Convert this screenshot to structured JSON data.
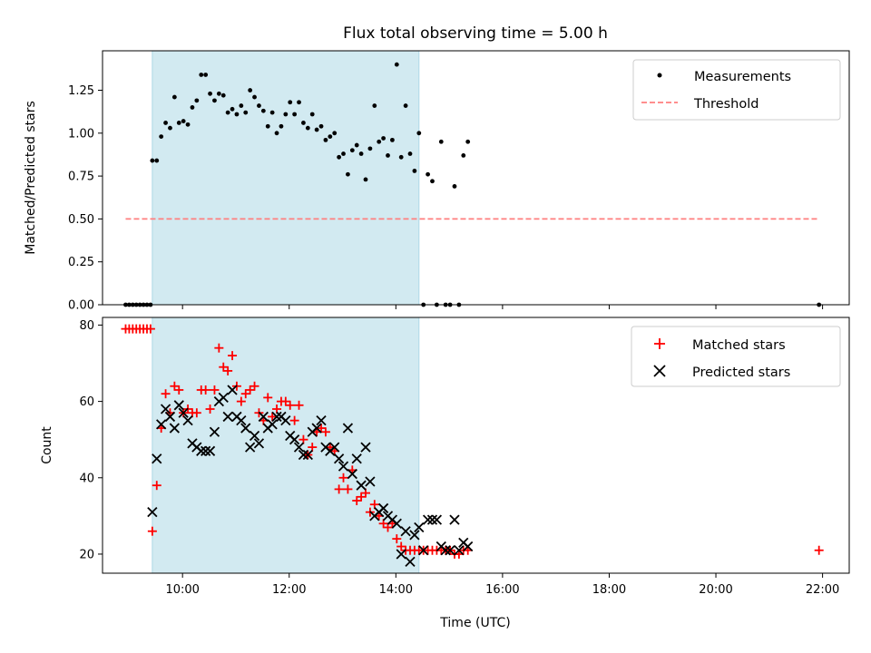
{
  "chart_data": [
    {
      "type": "scatter",
      "title": "Flux total observing time = 5.00 h",
      "xlabel": "",
      "ylabel": "Matched/Predicted stars",
      "xlim": [
        "08:30",
        "22:30"
      ],
      "ylim": [
        0,
        1.48
      ],
      "yticks": [
        "0.00",
        "0.25",
        "0.50",
        "0.75",
        "1.00",
        "1.25"
      ],
      "ytick_values": [
        0,
        0.25,
        0.5,
        0.75,
        1.0,
        1.25
      ],
      "shaded_interval": [
        "09:26",
        "14:26"
      ],
      "shade_color": "#add8e6",
      "legend_position": "upper right",
      "series": [
        {
          "name": "Measurements",
          "marker": "dot",
          "color": "#000000",
          "x": [
            "08:56",
            "09:00",
            "09:04",
            "09:08",
            "09:12",
            "09:16",
            "09:20",
            "09:24",
            "09:26",
            "09:31",
            "09:36",
            "09:41",
            "09:46",
            "09:51",
            "09:56",
            "10:01",
            "10:06",
            "10:11",
            "10:16",
            "10:21",
            "10:26",
            "10:31",
            "10:36",
            "10:41",
            "10:46",
            "10:51",
            "10:56",
            "11:01",
            "11:06",
            "11:11",
            "11:16",
            "11:21",
            "11:26",
            "11:31",
            "11:36",
            "11:41",
            "11:46",
            "11:51",
            "11:56",
            "12:01",
            "12:06",
            "12:11",
            "12:16",
            "12:21",
            "12:26",
            "12:31",
            "12:36",
            "12:41",
            "12:46",
            "12:51",
            "12:56",
            "13:01",
            "13:06",
            "13:11",
            "13:16",
            "13:21",
            "13:26",
            "13:31",
            "13:36",
            "13:41",
            "13:46",
            "13:51",
            "13:56",
            "14:01",
            "14:06",
            "14:11",
            "14:16",
            "14:21",
            "14:26",
            "14:31",
            "14:36",
            "14:41",
            "14:46",
            "14:51",
            "14:56",
            "15:01",
            "15:06",
            "15:11",
            "15:16",
            "15:21",
            "21:56"
          ],
          "y": [
            0,
            0,
            0,
            0,
            0,
            0,
            0,
            0,
            0.84,
            0.84,
            0.98,
            1.06,
            1.03,
            1.21,
            1.06,
            1.07,
            1.05,
            1.15,
            1.19,
            1.34,
            1.34,
            1.23,
            1.19,
            1.23,
            1.22,
            1.12,
            1.14,
            1.11,
            1.16,
            1.12,
            1.25,
            1.21,
            1.16,
            1.13,
            1.04,
            1.12,
            1.0,
            1.04,
            1.11,
            1.18,
            1.11,
            1.18,
            1.06,
            1.03,
            1.11,
            1.02,
            1.04,
            0.96,
            0.98,
            1.0,
            0.86,
            0.88,
            0.76,
            0.9,
            0.93,
            0.88,
            0.73,
            0.91,
            1.16,
            0.95,
            0.97,
            0.87,
            0.96,
            1.4,
            0.86,
            1.16,
            0.88,
            0.78,
            1.0,
            0,
            0.76,
            0.72,
            0,
            0.95,
            0,
            0,
            0.69,
            0,
            0.87,
            0.95,
            0
          ]
        },
        {
          "name": "Threshold",
          "marker": "dashed-line",
          "color": "#ff7f7f",
          "x": [
            "08:56",
            "21:56"
          ],
          "y": [
            0.5,
            0.5
          ]
        }
      ]
    },
    {
      "type": "scatter",
      "title": "",
      "xlabel": "Time (UTC)",
      "ylabel": "Count",
      "xlim": [
        "08:30",
        "22:30"
      ],
      "xticks": [
        "10:00",
        "12:00",
        "14:00",
        "16:00",
        "18:00",
        "20:00",
        "22:00"
      ],
      "ylim": [
        15,
        82
      ],
      "yticks": [
        "20",
        "40",
        "60",
        "80"
      ],
      "ytick_values": [
        20,
        40,
        60,
        80
      ],
      "shaded_interval": [
        "09:26",
        "14:26"
      ],
      "shade_color": "#add8e6",
      "legend_position": "upper right",
      "series": [
        {
          "name": "Matched stars",
          "marker": "plus",
          "color": "#ff0000",
          "x": [
            "08:56",
            "09:00",
            "09:04",
            "09:08",
            "09:12",
            "09:16",
            "09:20",
            "09:24",
            "09:26",
            "09:31",
            "09:36",
            "09:41",
            "09:46",
            "09:51",
            "09:56",
            "10:01",
            "10:06",
            "10:11",
            "10:16",
            "10:21",
            "10:26",
            "10:31",
            "10:36",
            "10:41",
            "10:46",
            "10:51",
            "10:56",
            "11:01",
            "11:06",
            "11:11",
            "11:16",
            "11:21",
            "11:26",
            "11:31",
            "11:36",
            "11:41",
            "11:46",
            "11:51",
            "11:56",
            "12:01",
            "12:06",
            "12:11",
            "12:16",
            "12:21",
            "12:26",
            "12:31",
            "12:36",
            "12:41",
            "12:46",
            "12:51",
            "12:56",
            "13:01",
            "13:06",
            "13:11",
            "13:16",
            "13:21",
            "13:26",
            "13:31",
            "13:36",
            "13:41",
            "13:46",
            "13:51",
            "13:56",
            "14:01",
            "14:06",
            "14:11",
            "14:16",
            "14:21",
            "14:26",
            "14:31",
            "14:36",
            "14:41",
            "14:46",
            "14:51",
            "14:56",
            "15:01",
            "15:06",
            "15:11",
            "15:16",
            "15:21",
            "21:56"
          ],
          "y": [
            79,
            79,
            79,
            79,
            79,
            79,
            79,
            79,
            26,
            38,
            53,
            62,
            57,
            64,
            63,
            57,
            58,
            57,
            57,
            63,
            63,
            58,
            63,
            74,
            69,
            68,
            72,
            64,
            60,
            62,
            63,
            64,
            57,
            55,
            61,
            56,
            58,
            60,
            60,
            59,
            55,
            59,
            50,
            46,
            48,
            52,
            53,
            52,
            48,
            47,
            37,
            40,
            37,
            42,
            34,
            35,
            36,
            31,
            33,
            30,
            28,
            27,
            28,
            24,
            22,
            21,
            21,
            21,
            21,
            21,
            21,
            21,
            21,
            21,
            21,
            21,
            20,
            20,
            21,
            21,
            21
          ]
        },
        {
          "name": "Predicted stars",
          "marker": "x",
          "color": "#000000",
          "x": [
            "09:26",
            "09:31",
            "09:36",
            "09:41",
            "09:46",
            "09:51",
            "09:56",
            "10:01",
            "10:06",
            "10:11",
            "10:16",
            "10:21",
            "10:26",
            "10:31",
            "10:36",
            "10:41",
            "10:46",
            "10:51",
            "10:56",
            "11:01",
            "11:06",
            "11:11",
            "11:16",
            "11:21",
            "11:26",
            "11:31",
            "11:36",
            "11:41",
            "11:46",
            "11:51",
            "11:56",
            "12:01",
            "12:06",
            "12:11",
            "12:16",
            "12:21",
            "12:26",
            "12:31",
            "12:36",
            "12:41",
            "12:46",
            "12:51",
            "12:56",
            "13:01",
            "13:06",
            "13:11",
            "13:16",
            "13:21",
            "13:26",
            "13:31",
            "13:36",
            "13:41",
            "13:46",
            "13:51",
            "13:56",
            "14:01",
            "14:06",
            "14:11",
            "14:16",
            "14:21",
            "14:26",
            "14:31",
            "14:36",
            "14:41",
            "14:46",
            "14:51",
            "14:56",
            "15:01",
            "15:06",
            "15:11",
            "15:16",
            "15:21"
          ],
          "y": [
            31,
            45,
            54,
            58,
            56,
            53,
            59,
            57,
            55,
            49,
            48,
            47,
            47,
            47,
            52,
            60,
            61,
            56,
            63,
            56,
            55,
            53,
            48,
            51,
            49,
            56,
            53,
            54,
            56,
            56,
            55,
            51,
            50,
            48,
            46,
            46,
            52,
            53,
            55,
            48,
            47,
            48,
            45,
            43,
            53,
            41,
            45,
            38,
            48,
            39,
            30,
            31,
            32,
            30,
            29,
            28,
            20,
            26,
            18,
            25,
            27,
            21,
            29,
            29,
            29,
            22,
            21,
            21,
            29,
            21,
            23,
            22
          ]
        }
      ]
    }
  ]
}
